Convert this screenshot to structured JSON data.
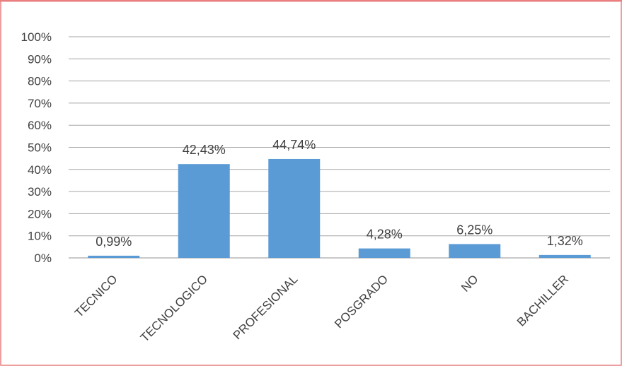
{
  "chart_data": {
    "type": "bar",
    "categories": [
      "TECNICO",
      "TECNOLOGICO",
      "PROFESIONAL",
      "POSGRADO",
      "NO",
      "BACHILLER"
    ],
    "values": [
      0.99,
      42.43,
      44.74,
      4.28,
      6.25,
      1.32
    ],
    "data_labels": [
      "0,99%",
      "42,43%",
      "44,74%",
      "4,28%",
      "6,25%",
      "1,32%"
    ],
    "y_ticks": [
      "0%",
      "10%",
      "20%",
      "30%",
      "40%",
      "50%",
      "60%",
      "70%",
      "80%",
      "90%",
      "100%"
    ],
    "ylim": [
      0,
      100
    ],
    "title": "",
    "xlabel": "",
    "ylabel": "",
    "grid": true,
    "legend": "none",
    "bar_color": "#5b9bd5",
    "grid_color": "#a6a6a6",
    "frame_color": "#e97f7f"
  }
}
